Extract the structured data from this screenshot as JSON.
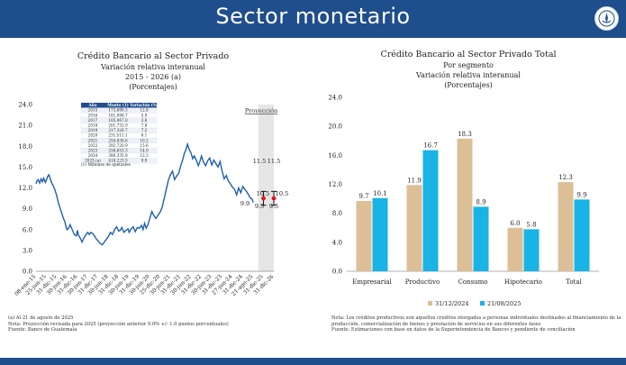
{
  "header": {
    "title": "Sector monetario"
  },
  "left_chart": {
    "title_lines": [
      "Crédito Bancario al Sector Privado",
      "Variación relativa interanual",
      "2015 - 2026 (a)",
      "(Porcentajes)"
    ],
    "projection_label": "Proyección",
    "inset_table": {
      "headers": [
        "Año",
        "Monto (1)",
        "Variación (%)"
      ],
      "rows": [
        [
          "2015",
          "173,690.3",
          "12.8"
        ],
        [
          "2016",
          "181,098.7",
          "5.9"
        ],
        [
          "2017",
          "185,067.0",
          "3.8"
        ],
        [
          "2018",
          "201,732.9",
          "7.8"
        ],
        [
          "2019",
          "217,326.7",
          "7.2"
        ],
        [
          "2020",
          "231,511.1",
          "6.1"
        ],
        [
          "2021",
          "254,838.6",
          "10.2"
        ],
        [
          "2022",
          "292,720.9",
          "15.6"
        ],
        [
          "2023",
          "338,653.3",
          "14.9"
        ],
        [
          "2024",
          "380,335.9",
          "12.3"
        ],
        [
          "2025 (a)",
          "418,223.5",
          "9.9"
        ]
      ],
      "footnote": "(1) Millones de quetzales"
    },
    "projection_annotations": {
      "last_value": "9.9",
      "end_2025": {
        "upper": "11.5",
        "center": "10.5",
        "lower": "9.5"
      },
      "end_2026": {
        "upper": "11.5",
        "center": "10.5",
        "lower": "9.5"
      }
    },
    "notes": [
      "(a) Al 21 de agosto de 2025",
      "Nota: Proyección revisada para 2025 (proyección anterior 9.0% +/- 1.0 puntos porcentuales)",
      "Fuente: Banco de Guatemala"
    ]
  },
  "right_chart": {
    "title_lines": [
      "Crédito Bancario al Sector Privado Total",
      "Por segmento",
      "Variación relativa interanual",
      "(Porcentajes)"
    ],
    "notes": [
      "Nota: Los créditos productivos son aquellos créditos otorgados a personas individuales destinados al financiamiento de la",
      "producción, comercialización de bienes y prestación de servicios en sus diferentes fases",
      "Fuente: Estimaciones con base en datos de la Superintendencia de Bancos y pendiente de conciliación"
    ]
  },
  "chart_data": [
    {
      "type": "line",
      "title": "Crédito Bancario al Sector Privado",
      "subtitle": "Variación relativa interanual 2015 - 2026 (a) (Porcentajes)",
      "ylim": [
        0,
        24
      ],
      "yticks": [
        0.0,
        3.0,
        6.0,
        9.0,
        12.0,
        15.0,
        18.0,
        21.0,
        24.0
      ],
      "xticks": [
        "08-ene-15",
        "25-jun-15",
        "31-dic-15",
        "30-jun-16",
        "31-dic-16",
        "30-jun-17",
        "31-dic-17",
        "30-jun-18",
        "31-dic-18",
        "30-jun-19",
        "31-dic-19",
        "30-jun-20",
        "25-dic-20",
        "30-jun-21",
        "31-dic-21",
        "30-jun-22",
        "31-dic-22",
        "30-jun-23",
        "31-dic-23",
        "27-jun-24",
        "31-dic-24",
        "21-ago-25",
        "31-dic-25",
        "31-dic-26"
      ],
      "series": [
        {
          "color": "#1f5fae",
          "x": [
            0,
            0.08,
            0.2,
            0.35,
            0.5,
            0.62,
            0.75,
            0.9,
            1.0,
            1.1,
            1.25,
            1.4,
            1.55,
            1.7,
            1.85,
            2.0,
            2.1,
            2.3,
            2.5,
            2.65,
            2.8,
            2.9,
            3.0,
            3.15,
            3.3,
            3.5,
            3.7,
            3.9,
            4.0,
            4.1,
            4.3,
            4.45,
            4.6,
            4.8,
            5.0,
            5.15,
            5.3,
            5.5,
            5.7,
            5.85,
            6.0,
            6.2,
            6.4,
            6.6,
            6.8,
            7.0,
            7.2,
            7.4,
            7.6,
            7.8,
            8.0,
            8.15,
            8.3,
            8.5,
            8.7,
            8.9,
            9.0,
            9.2,
            9.4,
            9.6,
            9.8,
            10.0,
            10.2,
            10.35,
            10.5,
            10.65,
            10.8,
            11.0,
            11.2,
            11.4,
            11.6,
            11.8,
            12.0,
            12.2,
            12.4,
            12.6,
            12.8,
            13.0,
            13.2,
            13.4,
            13.6,
            13.8,
            14.0,
            14.2,
            14.35,
            14.5,
            14.65,
            14.8,
            15.0,
            15.15,
            15.3,
            15.5,
            15.7,
            15.85,
            16.0,
            16.2,
            16.4,
            16.6,
            16.8,
            17.0,
            17.2,
            17.4,
            17.6,
            17.8,
            18.0,
            18.2,
            18.4,
            18.6,
            18.8,
            19.0,
            19.2,
            19.4,
            19.6,
            19.8,
            20.0,
            20.2,
            20.4,
            20.6,
            20.75,
            20.9,
            21.0
          ],
          "y": [
            12.6,
            13.0,
            13.2,
            12.7,
            13.3,
            12.9,
            13.4,
            12.8,
            13.1,
            13.6,
            13.9,
            13.2,
            12.6,
            12.2,
            11.6,
            10.9,
            10.2,
            9.2,
            8.3,
            7.6,
            7.1,
            6.4,
            6.0,
            6.2,
            6.7,
            6.0,
            5.3,
            5.1,
            5.9,
            5.2,
            4.7,
            4.2,
            4.7,
            5.2,
            5.6,
            5.3,
            5.6,
            5.4,
            5.0,
            4.6,
            4.4,
            4.0,
            3.8,
            4.2,
            4.6,
            5.0,
            5.6,
            5.3,
            6.0,
            6.4,
            5.8,
            5.9,
            6.3,
            5.6,
            5.9,
            6.1,
            5.6,
            6.1,
            6.4,
            5.7,
            6.3,
            6.2,
            6.6,
            6.0,
            6.9,
            6.2,
            6.6,
            7.6,
            8.6,
            8.0,
            7.6,
            8.1,
            8.5,
            9.2,
            10.5,
            11.8,
            13.1,
            13.9,
            14.4,
            13.2,
            13.7,
            14.1,
            15.2,
            16.1,
            17.0,
            17.5,
            18.3,
            17.6,
            17.0,
            16.2,
            16.6,
            16.0,
            15.2,
            15.8,
            16.6,
            15.7,
            15.2,
            15.9,
            16.3,
            15.3,
            16.0,
            15.5,
            15.0,
            15.8,
            14.4,
            13.3,
            13.8,
            13.0,
            12.6,
            12.1,
            11.8,
            11.0,
            12.0,
            11.3,
            12.2,
            11.8,
            11.4,
            10.9,
            10.5,
            10.4,
            9.9
          ]
        }
      ],
      "projection": {
        "region_start": 21.5,
        "points": [
          {
            "x": 22,
            "center": 10.5,
            "lower": 9.5,
            "upper": 11.5
          },
          {
            "x": 23,
            "center": 10.5,
            "lower": 9.5,
            "upper": 11.5
          }
        ]
      }
    },
    {
      "type": "bar",
      "title": "Crédito Bancario al Sector Privado Total",
      "subtitle": "Por segmento, Variación relativa interanual (Porcentajes)",
      "categories": [
        "Empresarial",
        "Productivo",
        "Consumo",
        "Hipotecario",
        "Total"
      ],
      "ylim": [
        0,
        24
      ],
      "yticks": [
        0.0,
        4.0,
        8.0,
        12.0,
        16.0,
        20.0,
        24.0
      ],
      "legend_position": "bottom",
      "series": [
        {
          "name": "31/12/2024",
          "color": "#dcbf96",
          "values": [
            9.7,
            11.9,
            18.3,
            6.0,
            12.3
          ]
        },
        {
          "name": "21/08/2025",
          "color": "#19b3e6",
          "values": [
            10.1,
            16.7,
            8.9,
            5.8,
            9.9
          ]
        }
      ]
    }
  ]
}
